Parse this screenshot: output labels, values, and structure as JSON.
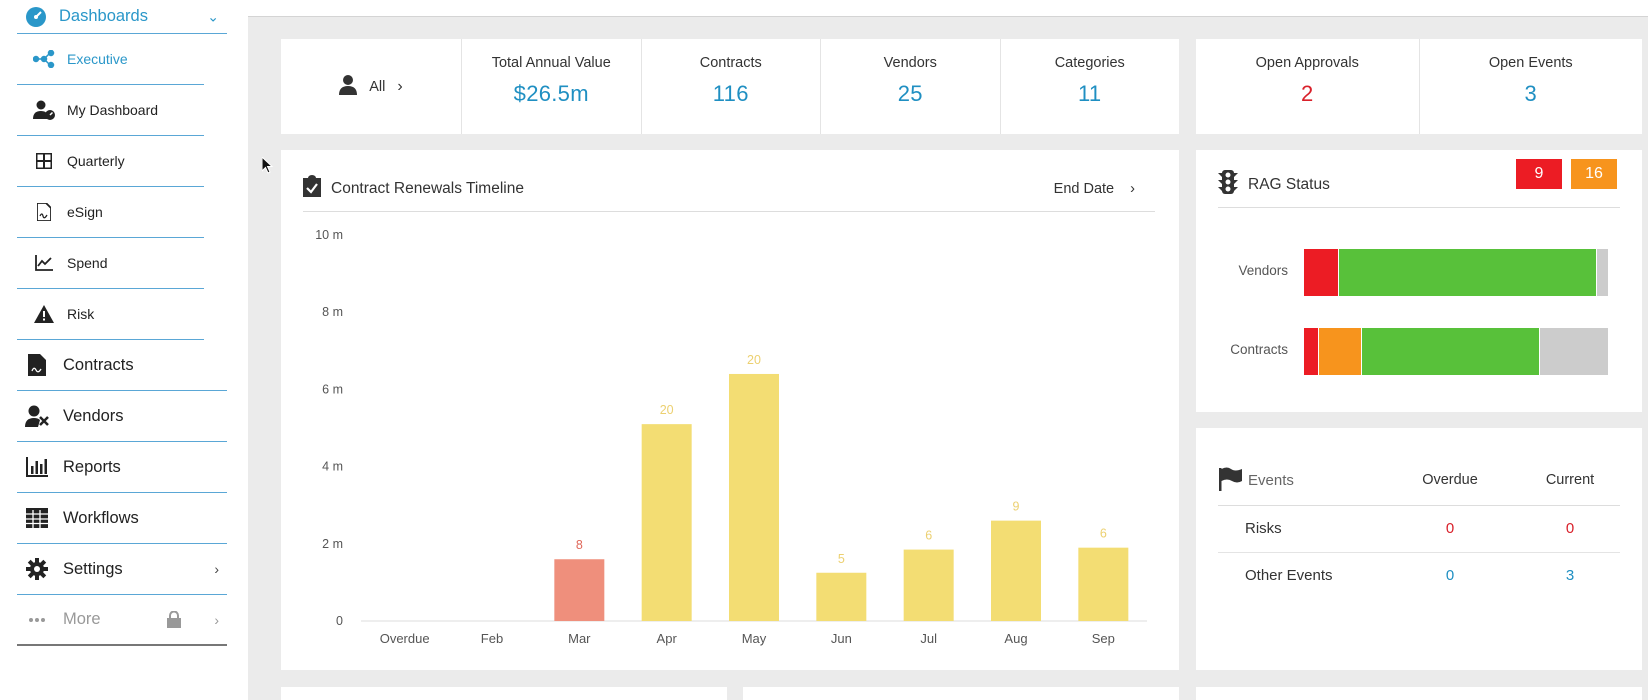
{
  "sidebar": {
    "dashboards_label": "Dashboards",
    "items": [
      {
        "label": "Executive",
        "icon": "hub-icon",
        "active": true
      },
      {
        "label": "My Dashboard",
        "icon": "user-gauge-icon"
      },
      {
        "label": "Quarterly",
        "icon": "grid-icon"
      },
      {
        "label": "eSign",
        "icon": "document-sign-icon"
      },
      {
        "label": "Spend",
        "icon": "trend-chart-icon"
      },
      {
        "label": "Risk",
        "icon": "warning-icon"
      }
    ],
    "main_items": [
      {
        "label": "Contracts",
        "icon": "contract-icon"
      },
      {
        "label": "Vendors",
        "icon": "vendor-icon"
      },
      {
        "label": "Reports",
        "icon": "bar-chart-icon"
      },
      {
        "label": "Workflows",
        "icon": "table-icon"
      },
      {
        "label": "Settings",
        "icon": "gear-icon"
      },
      {
        "label": "More",
        "icon": "dots-icon"
      }
    ]
  },
  "kpis": {
    "filter_label": "All",
    "total_annual_value_label": "Total Annual Value",
    "total_annual_value": "$26.5m",
    "contracts_label": "Contracts",
    "contracts": "116",
    "vendors_label": "Vendors",
    "vendors": "25",
    "categories_label": "Categories",
    "categories": "11",
    "open_approvals_label": "Open Approvals",
    "open_approvals": "2",
    "open_events_label": "Open Events",
    "open_events": "3"
  },
  "renewals": {
    "title": "Contract Renewals Timeline",
    "sort_label": "End Date"
  },
  "chart_data": {
    "type": "bar",
    "title": "Contract Renewals Timeline",
    "categories": [
      "Overdue",
      "Feb",
      "Mar",
      "Apr",
      "May",
      "Jun",
      "Jul",
      "Aug",
      "Sep"
    ],
    "values": [
      0,
      0,
      1.6,
      5.1,
      6.4,
      1.25,
      1.85,
      2.6,
      1.9
    ],
    "data_labels": [
      "",
      "",
      "8",
      "20",
      "20",
      "5",
      "6",
      "9",
      "6"
    ],
    "y_ticks": [
      "0",
      "2 m",
      "4 m",
      "6 m",
      "8 m",
      "10 m"
    ],
    "ylim": [
      0,
      10
    ],
    "colors": {
      "overdue_like": "#ef8f7c",
      "normal": "#f3dd73",
      "label_red": "#e0685a",
      "label_yellow": "#ecd070"
    },
    "bar_colors": [
      "normal",
      "normal",
      "overdue_like",
      "normal",
      "normal",
      "normal",
      "normal",
      "normal",
      "normal"
    ],
    "grid": false
  },
  "rag": {
    "title": "RAG Status",
    "badge_red": "9",
    "badge_amber": "16",
    "rows": [
      {
        "label": "Vendors",
        "segments": [
          {
            "color": "#ec1c24",
            "share": 0.115
          },
          {
            "color": "#58c13a",
            "share": 0.845
          },
          {
            "color": "#cccccc",
            "share": 0.04
          }
        ]
      },
      {
        "label": "Contracts",
        "segments": [
          {
            "color": "#ec1c24",
            "share": 0.05
          },
          {
            "color": "#f7941d",
            "share": 0.14
          },
          {
            "color": "#58c13a",
            "share": 0.585
          },
          {
            "color": "#cccccc",
            "share": 0.225
          }
        ]
      }
    ]
  },
  "events": {
    "title": "Events",
    "col_overdue": "Overdue",
    "col_current": "Current",
    "rows": [
      {
        "name": "Risks",
        "overdue": "0",
        "current": "0"
      },
      {
        "name": "Other Events",
        "overdue": "0",
        "current": "3"
      }
    ]
  }
}
